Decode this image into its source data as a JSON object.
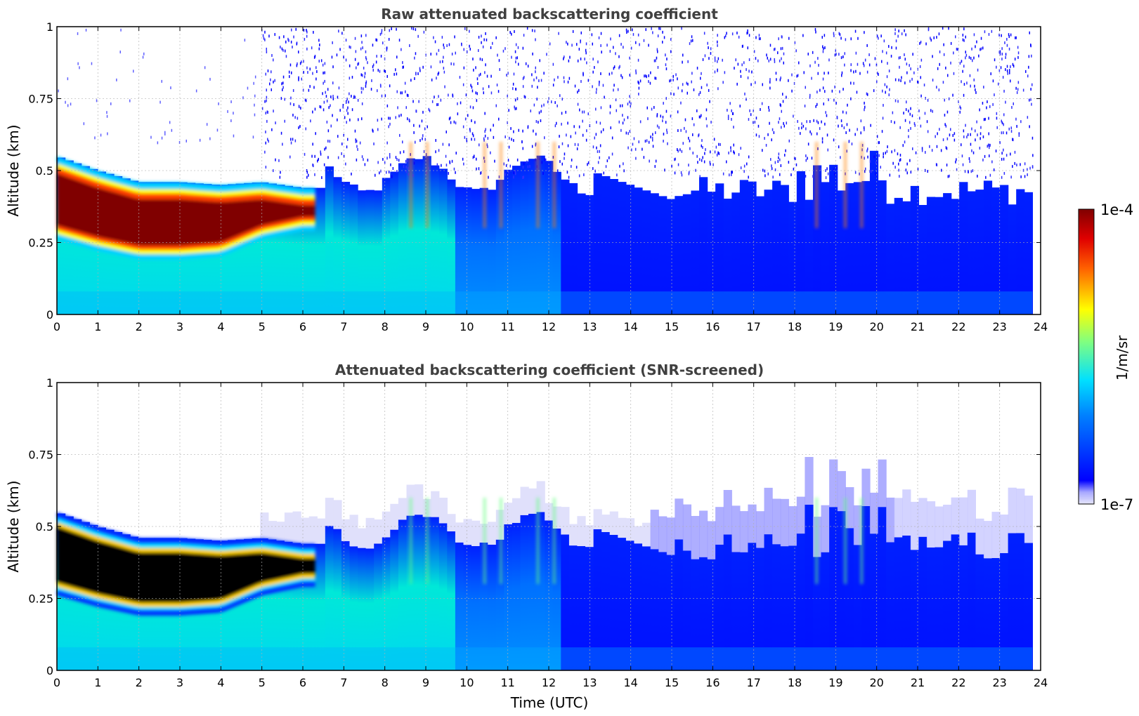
{
  "chart_data": [
    {
      "type": "heatmap",
      "title": "Raw attenuated backscattering coefficient",
      "xlabel": "",
      "ylabel": "Altitude (km)",
      "xlim": [
        0,
        24
      ],
      "ylim": [
        0,
        1
      ],
      "x_ticks": [
        "0",
        "1",
        "2",
        "3",
        "4",
        "5",
        "6",
        "7",
        "8",
        "9",
        "10",
        "11",
        "12",
        "13",
        "14",
        "15",
        "16",
        "17",
        "18",
        "19",
        "20",
        "21",
        "22",
        "23",
        "24"
      ],
      "y_ticks": [
        "0",
        "0.25",
        "0.5",
        "0.75",
        "1"
      ],
      "grid": true,
      "layer": {
        "top_km": [
          [
            0,
            0.55
          ],
          [
            1,
            0.5
          ],
          [
            2,
            0.46
          ],
          [
            3,
            0.46
          ],
          [
            4,
            0.45
          ],
          [
            5,
            0.46
          ],
          [
            6,
            0.44
          ]
        ],
        "bottom_km": [
          [
            0,
            0.28
          ],
          [
            1,
            0.24
          ],
          [
            2,
            0.21
          ],
          [
            3,
            0.21
          ],
          [
            4,
            0.22
          ],
          [
            5,
            0.28
          ],
          [
            6,
            0.31
          ]
        ]
      }
    },
    {
      "type": "heatmap",
      "title": "Attenuated backscattering coefficient (SNR-screened)",
      "xlabel": "Time (UTC)",
      "ylabel": "Altitude (km)",
      "xlim": [
        0,
        24
      ],
      "ylim": [
        0,
        1
      ],
      "x_ticks": [
        "0",
        "1",
        "2",
        "3",
        "4",
        "5",
        "6",
        "7",
        "8",
        "9",
        "10",
        "11",
        "12",
        "13",
        "14",
        "15",
        "16",
        "17",
        "18",
        "19",
        "20",
        "21",
        "22",
        "23",
        "24"
      ],
      "y_ticks": [
        "0",
        "0.25",
        "0.5",
        "0.75",
        "1"
      ],
      "grid": true,
      "layer": {
        "top_km": [
          [
            0,
            0.55
          ],
          [
            1,
            0.5
          ],
          [
            2,
            0.46
          ],
          [
            3,
            0.46
          ],
          [
            4,
            0.45
          ],
          [
            5,
            0.46
          ],
          [
            6,
            0.44
          ]
        ],
        "bottom_km": [
          [
            0,
            0.28
          ],
          [
            1,
            0.24
          ],
          [
            2,
            0.21
          ],
          [
            3,
            0.21
          ],
          [
            4,
            0.22
          ],
          [
            5,
            0.28
          ],
          [
            6,
            0.31
          ]
        ]
      }
    }
  ],
  "colorbar": {
    "label": "1/m/sr",
    "min_label": "1e-7",
    "max_label": "1e-4",
    "scale": "log",
    "colormap": "jet",
    "low_color": "#e6e6fa",
    "high_color": "#800000"
  }
}
